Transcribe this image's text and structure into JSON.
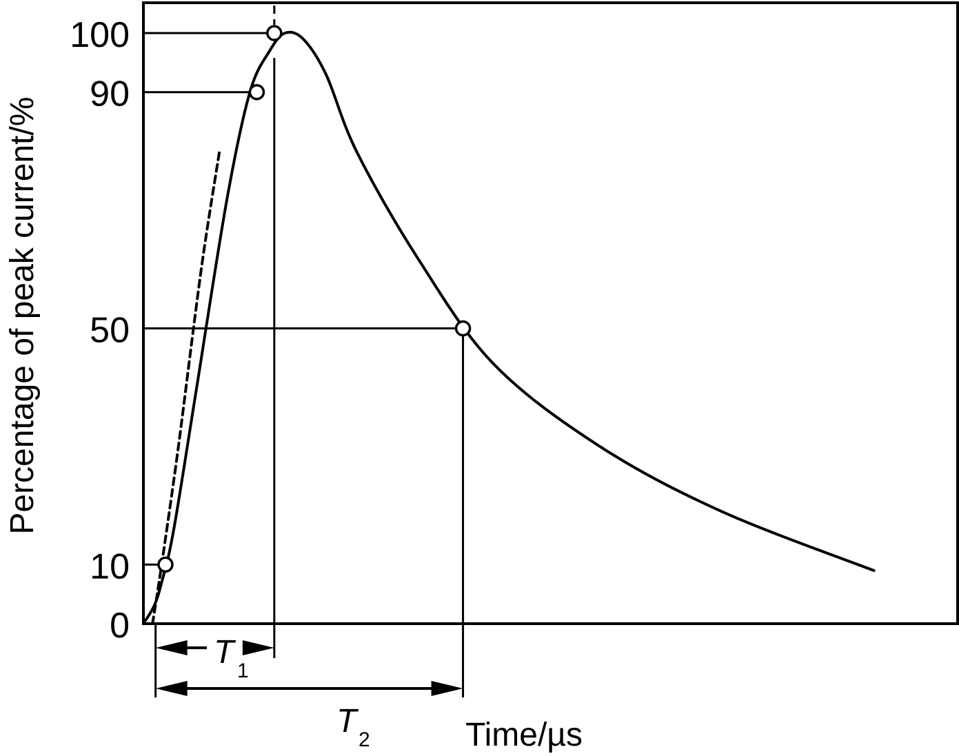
{
  "chart_data": {
    "type": "line",
    "title": "",
    "xlabel": "Time/µs",
    "ylabel": "Percentage of peak current/%",
    "ylim": [
      0,
      100
    ],
    "y_ticks": [
      0,
      10,
      50,
      90,
      100
    ],
    "y_tick_labels": [
      "0",
      "10",
      "50",
      "90",
      "100"
    ],
    "grid": false,
    "legend": "none",
    "series": [
      {
        "style": "solid",
        "x": [
          0.0,
          0.7,
          1.2,
          2.0,
          3.5,
          5.5,
          7.0,
          8.3,
          9.3,
          10.5,
          12.0,
          14.0,
          18.0,
          23.0,
          30.0,
          38.0,
          48.0
        ],
        "y": [
          0,
          3,
          7,
          16,
          40,
          72,
          90,
          97,
          100,
          99,
          93,
          80,
          62,
          44,
          30,
          19,
          9
        ]
      },
      {
        "style": "dashed",
        "x": [
          0.6,
          1.2,
          2.3,
          3.8,
          5.0
        ],
        "y": [
          0,
          10,
          30,
          60,
          80
        ]
      }
    ],
    "markers": [
      {
        "x": 1.45,
        "y": 10
      },
      {
        "x": 7.45,
        "y": 90
      },
      {
        "x": 8.6,
        "y": 100
      },
      {
        "x": 21.0,
        "y": 50
      }
    ],
    "intervals": [
      {
        "label": "T",
        "subscript": "1",
        "from": 0.8,
        "to": 8.6
      },
      {
        "label": "T",
        "subscript": "2",
        "from": 0.8,
        "to": 21.0
      }
    ]
  }
}
